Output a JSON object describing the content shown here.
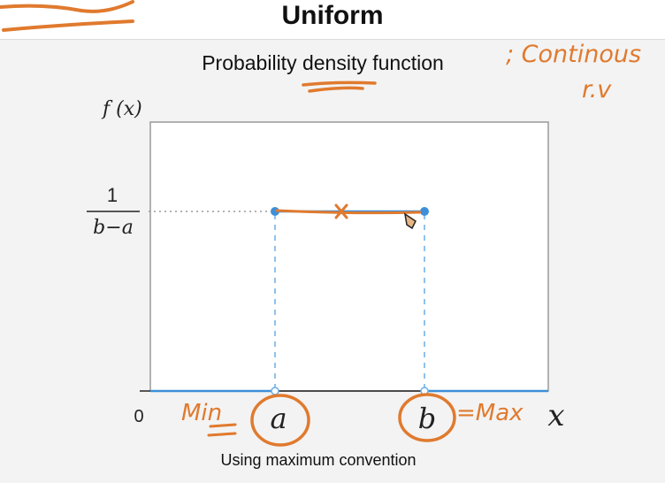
{
  "header": {
    "title": "Uniform"
  },
  "chart_data": {
    "type": "line",
    "title": "Probability density function",
    "subtitle": "Using maximum convention",
    "ylabel": "f (x)",
    "xlabel": "x",
    "x_ticks": [
      "0",
      "a",
      "b"
    ],
    "y_tick": {
      "numerator": "1",
      "denominator": "b−a"
    },
    "series": [
      {
        "name": "",
        "segments": [
          {
            "x": [
              "0",
              "a"
            ],
            "y": [
              "0",
              "0"
            ]
          },
          {
            "x": [
              "a",
              "b"
            ],
            "y": [
              "1/(b−a)",
              "1/(b−a)"
            ]
          },
          {
            "x": [
              "b",
              "∞"
            ],
            "y": [
              "0",
              "0"
            ]
          }
        ]
      }
    ],
    "grid": false
  },
  "annotations": {
    "top_right_line1": "; Continous",
    "top_right_line2": "r.v",
    "min_label": "Min",
    "max_label": "=Max",
    "segment_mark": "x"
  },
  "colors": {
    "line": "#3d8fd9",
    "annotation": "#e07a2e",
    "axis": "#222222",
    "box": "#9a9a9a"
  }
}
